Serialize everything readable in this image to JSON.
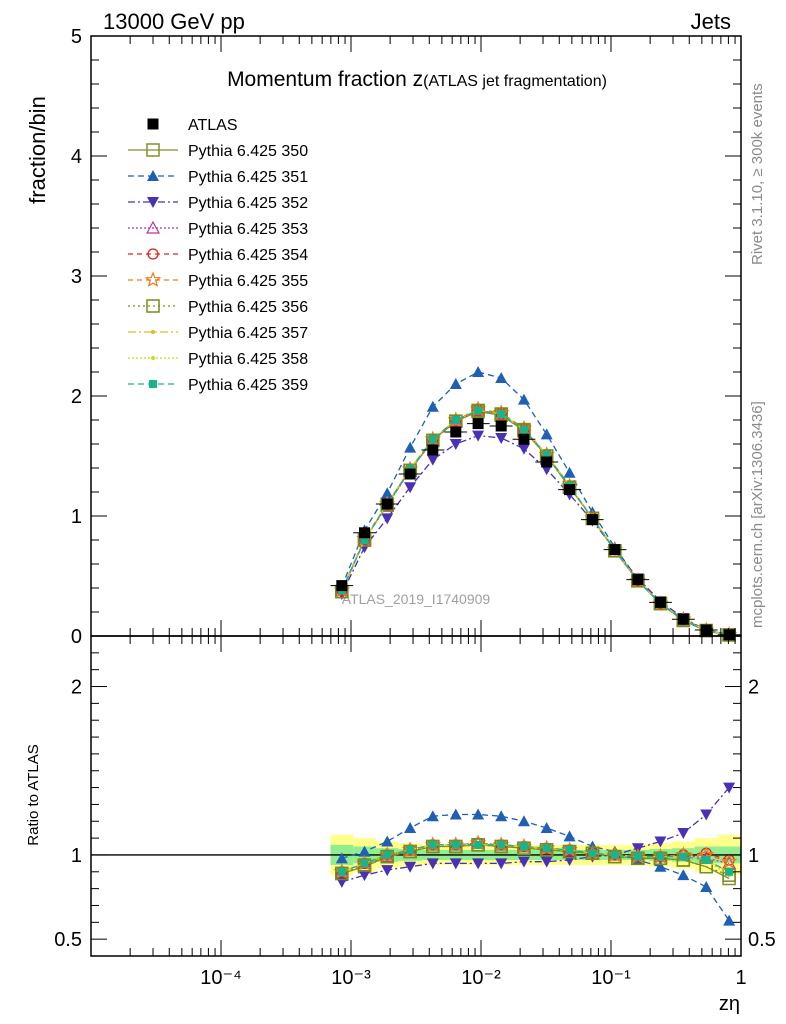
{
  "header": {
    "left": "13000 GeV pp",
    "right": "Jets"
  },
  "side_labels": {
    "rivet": "Rivet 3.1.10, ≥ 300k events",
    "mcplots": "mcplots.cern.ch [arXiv:1306.3436]"
  },
  "watermark": "ATLAS_2019_I1740909",
  "chart_data": [
    {
      "type": "line",
      "title_main": "Momentum fraction z",
      "title_sub": "(ATLAS jet fragmentation)",
      "ylabel": "fraction/bin",
      "xlabel": "zη",
      "xscale": "log",
      "xlim": [
        1e-05,
        1
      ],
      "ylim": [
        0,
        5
      ],
      "yticks": [
        "0",
        "1",
        "2",
        "3",
        "4",
        "5"
      ],
      "x": [
        0.00085,
        0.00127,
        0.0019,
        0.00285,
        0.00426,
        0.0064,
        0.0095,
        0.0143,
        0.0214,
        0.032,
        0.048,
        0.072,
        0.107,
        0.161,
        0.24,
        0.36,
        0.54,
        0.81
      ],
      "data": {
        "name": "ATLAS",
        "values": [
          0.42,
          0.86,
          1.1,
          1.35,
          1.55,
          1.7,
          1.77,
          1.75,
          1.64,
          1.45,
          1.22,
          0.97,
          0.72,
          0.47,
          0.28,
          0.14,
          0.05,
          0.01
        ],
        "color": "#000000"
      },
      "series": [
        {
          "name": "Pythia 6.425 350",
          "color": "#8c8c2a",
          "dash": "",
          "marker": "square-open",
          "values": [
            0.37,
            0.8,
            1.1,
            1.38,
            1.63,
            1.79,
            1.87,
            1.84,
            1.71,
            1.5,
            1.24,
            0.98,
            0.71,
            0.46,
            0.27,
            0.13,
            0.045,
            0.009
          ]
        },
        {
          "name": "Pythia 6.425 351",
          "color": "#1f5fb4",
          "dash": "6,4",
          "marker": "triangle-up",
          "values": [
            0.41,
            0.88,
            1.19,
            1.57,
            1.91,
            2.1,
            2.2,
            2.15,
            1.97,
            1.68,
            1.36,
            1.03,
            0.74,
            0.47,
            0.27,
            0.13,
            0.042,
            0.007
          ]
        },
        {
          "name": "Pythia 6.425 352",
          "color": "#4b2fb4",
          "dash": "7,3,2,3",
          "marker": "triangle-down",
          "values": [
            0.35,
            0.74,
            0.98,
            1.24,
            1.47,
            1.6,
            1.67,
            1.65,
            1.56,
            1.39,
            1.18,
            0.96,
            0.72,
            0.48,
            0.29,
            0.15,
            0.05,
            0.013
          ]
        },
        {
          "name": "Pythia 6.425 353",
          "color": "#c0339a",
          "dash": "2,2",
          "marker": "triangle-open",
          "values": [
            0.38,
            0.8,
            1.09,
            1.38,
            1.63,
            1.79,
            1.88,
            1.85,
            1.72,
            1.51,
            1.25,
            0.98,
            0.72,
            0.46,
            0.27,
            0.14,
            0.048,
            0.01
          ]
        },
        {
          "name": "Pythia 6.425 354",
          "color": "#e0221e",
          "dash": "5,4",
          "marker": "circle-open",
          "values": [
            0.38,
            0.81,
            1.1,
            1.39,
            1.64,
            1.8,
            1.88,
            1.85,
            1.72,
            1.51,
            1.25,
            0.98,
            0.72,
            0.46,
            0.27,
            0.14,
            0.048,
            0.01
          ]
        },
        {
          "name": "Pythia 6.425 355",
          "color": "#f07a1a",
          "dash": "5,4",
          "marker": "star-open",
          "values": [
            0.38,
            0.81,
            1.1,
            1.39,
            1.64,
            1.8,
            1.89,
            1.86,
            1.73,
            1.51,
            1.25,
            0.98,
            0.72,
            0.46,
            0.27,
            0.14,
            0.048,
            0.01
          ]
        },
        {
          "name": "Pythia 6.425 356",
          "color": "#7a8c1a",
          "dash": "2,3",
          "marker": "square-open",
          "values": [
            0.37,
            0.8,
            1.09,
            1.38,
            1.63,
            1.79,
            1.88,
            1.85,
            1.72,
            1.5,
            1.24,
            0.98,
            0.71,
            0.46,
            0.27,
            0.13,
            0.045,
            0.009
          ]
        },
        {
          "name": "Pythia 6.425 357",
          "color": "#d6c41a",
          "dash": "8,3,2,3",
          "marker": "dot",
          "values": [
            0.38,
            0.8,
            1.1,
            1.39,
            1.64,
            1.8,
            1.88,
            1.85,
            1.72,
            1.51,
            1.25,
            0.98,
            0.72,
            0.46,
            0.27,
            0.14,
            0.047,
            0.009
          ]
        },
        {
          "name": "Pythia 6.425 358",
          "color": "#c8d81a",
          "dash": "2,2",
          "marker": "dot",
          "values": [
            0.38,
            0.8,
            1.1,
            1.39,
            1.64,
            1.8,
            1.88,
            1.85,
            1.72,
            1.51,
            1.25,
            0.98,
            0.72,
            0.46,
            0.27,
            0.14,
            0.047,
            0.009
          ]
        },
        {
          "name": "Pythia 6.425 359",
          "color": "#1ab48c",
          "dash": "6,4",
          "marker": "square-filled",
          "values": [
            0.38,
            0.8,
            1.1,
            1.39,
            1.64,
            1.8,
            1.88,
            1.85,
            1.72,
            1.51,
            1.25,
            0.98,
            0.72,
            0.46,
            0.27,
            0.14,
            0.047,
            0.009
          ]
        }
      ]
    },
    {
      "type": "line",
      "ylabel": "Ratio to ATLAS",
      "xlabel": "zη",
      "xscale": "log",
      "xlim": [
        1e-05,
        1
      ],
      "ylim": [
        0.4,
        2.3
      ],
      "yticks": [
        "0.5",
        "1",
        "2"
      ],
      "xticks": [
        "10⁻⁴",
        "10⁻³",
        "10⁻²",
        "10⁻¹",
        "1"
      ],
      "band_inner": [
        0.06,
        0.05,
        0.04,
        0.035,
        0.03,
        0.03,
        0.03,
        0.03,
        0.03,
        0.03,
        0.03,
        0.03,
        0.03,
        0.03,
        0.035,
        0.04,
        0.05,
        0.05
      ],
      "band_outer": [
        0.12,
        0.1,
        0.08,
        0.07,
        0.06,
        0.06,
        0.06,
        0.06,
        0.06,
        0.06,
        0.06,
        0.06,
        0.06,
        0.06,
        0.07,
        0.08,
        0.1,
        0.12
      ],
      "series": [
        {
          "name": "Pythia 6.425 350",
          "values": [
            0.89,
            0.93,
            0.99,
            1.02,
            1.05,
            1.05,
            1.06,
            1.05,
            1.04,
            1.03,
            1.02,
            1.01,
            0.99,
            0.98,
            0.98,
            0.97,
            0.93,
            0.86
          ]
        },
        {
          "name": "Pythia 6.425 351",
          "values": [
            0.98,
            1.02,
            1.08,
            1.16,
            1.23,
            1.24,
            1.24,
            1.23,
            1.2,
            1.16,
            1.11,
            1.05,
            1.02,
            0.97,
            0.93,
            0.88,
            0.81,
            0.61
          ]
        },
        {
          "name": "Pythia 6.425 352",
          "values": [
            0.84,
            0.88,
            0.91,
            0.93,
            0.95,
            0.95,
            0.95,
            0.95,
            0.96,
            0.96,
            0.97,
            0.99,
            1.0,
            1.04,
            1.08,
            1.13,
            1.24,
            1.4
          ]
        },
        {
          "name": "Pythia 6.425 353",
          "values": [
            0.9,
            0.95,
            0.99,
            1.03,
            1.06,
            1.06,
            1.07,
            1.06,
            1.05,
            1.04,
            1.03,
            1.01,
            1.0,
            0.99,
            0.99,
            1.0,
            0.98,
            0.95
          ]
        },
        {
          "name": "Pythia 6.425 354",
          "values": [
            0.9,
            0.95,
            1.0,
            1.03,
            1.06,
            1.06,
            1.07,
            1.06,
            1.05,
            1.04,
            1.03,
            1.01,
            1.0,
            0.99,
            0.99,
            1.0,
            1.01,
            0.97
          ]
        },
        {
          "name": "Pythia 6.425 355",
          "values": [
            0.9,
            0.95,
            1.0,
            1.03,
            1.06,
            1.06,
            1.07,
            1.06,
            1.05,
            1.04,
            1.03,
            1.01,
            1.0,
            0.99,
            0.99,
            1.0,
            1.0,
            0.96
          ]
        },
        {
          "name": "Pythia 6.425 356",
          "values": [
            0.89,
            0.94,
            0.99,
            1.02,
            1.05,
            1.05,
            1.06,
            1.05,
            1.04,
            1.03,
            1.02,
            1.01,
            0.99,
            0.98,
            0.98,
            0.97,
            0.93,
            0.88
          ]
        },
        {
          "name": "Pythia 6.425 357",
          "values": [
            0.9,
            0.95,
            1.0,
            1.03,
            1.06,
            1.06,
            1.06,
            1.06,
            1.05,
            1.04,
            1.03,
            1.01,
            1.0,
            0.99,
            0.99,
            0.99,
            0.97,
            0.9
          ]
        },
        {
          "name": "Pythia 6.425 358",
          "values": [
            0.9,
            0.95,
            1.0,
            1.03,
            1.06,
            1.06,
            1.06,
            1.06,
            1.05,
            1.04,
            1.03,
            1.01,
            1.0,
            0.99,
            0.99,
            0.99,
            0.97,
            0.88
          ]
        },
        {
          "name": "Pythia 6.425 359",
          "values": [
            0.9,
            0.95,
            1.0,
            1.03,
            1.06,
            1.06,
            1.06,
            1.06,
            1.05,
            1.04,
            1.03,
            1.01,
            1.0,
            0.99,
            0.99,
            0.99,
            0.97,
            0.9
          ]
        }
      ]
    }
  ]
}
